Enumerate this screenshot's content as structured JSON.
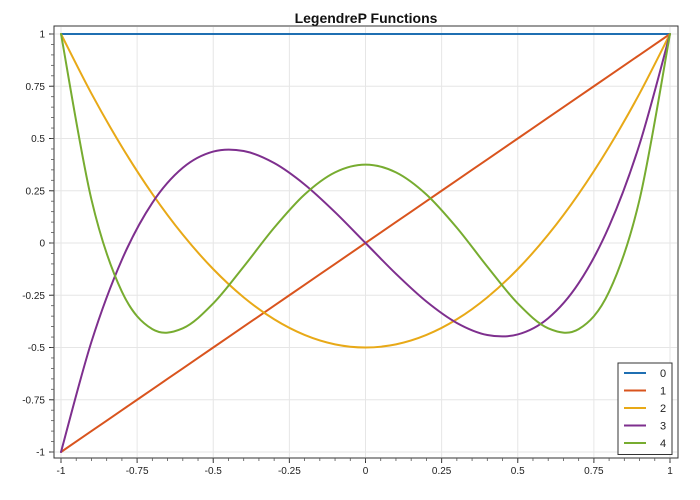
{
  "chart_data": {
    "type": "line",
    "title": "LegendreP Functions",
    "xlabel": "",
    "ylabel": "",
    "xlim": [
      -1,
      1
    ],
    "ylim": [
      -1,
      1
    ],
    "x_ticks": [
      -1,
      -0.75,
      -0.5,
      -0.25,
      0,
      0.25,
      0.5,
      0.75,
      1
    ],
    "x_tick_labels": [
      "-1",
      "-0.75",
      "-0.5",
      "-0.25",
      "0",
      "0.25",
      "0.5",
      "0.75",
      "1"
    ],
    "y_ticks": [
      -1,
      -0.75,
      -0.5,
      -0.25,
      0,
      0.25,
      0.5,
      0.75,
      1
    ],
    "y_tick_labels": [
      "-1",
      "-0.75",
      "-0.5",
      "-0.25",
      "0",
      "0.25",
      "0.5",
      "0.75",
      "1"
    ],
    "grid": true,
    "legend_position": "bottom-right",
    "x": [
      -1,
      -0.9,
      -0.8,
      -0.7,
      -0.6,
      -0.5,
      -0.4,
      -0.3,
      -0.2,
      -0.1,
      0,
      0.1,
      0.2,
      0.3,
      0.4,
      0.5,
      0.6,
      0.7,
      0.8,
      0.9,
      1
    ],
    "series": [
      {
        "name": "0",
        "color": "#1f6fb2",
        "values": [
          1,
          1,
          1,
          1,
          1,
          1,
          1,
          1,
          1,
          1,
          1,
          1,
          1,
          1,
          1,
          1,
          1,
          1,
          1,
          1,
          1
        ]
      },
      {
        "name": "1",
        "color": "#d9541e",
        "values": [
          -1,
          -0.9,
          -0.8,
          -0.7,
          -0.6,
          -0.5,
          -0.4,
          -0.3,
          -0.2,
          -0.1,
          0,
          0.1,
          0.2,
          0.3,
          0.4,
          0.5,
          0.6,
          0.7,
          0.8,
          0.9,
          1
        ]
      },
      {
        "name": "2",
        "color": "#e8a917",
        "values": [
          1,
          0.715,
          0.46,
          0.235,
          0.04,
          -0.125,
          -0.26,
          -0.365,
          -0.44,
          -0.485,
          -0.5,
          -0.485,
          -0.44,
          -0.365,
          -0.26,
          -0.125,
          0.04,
          0.235,
          0.46,
          0.715,
          1
        ]
      },
      {
        "name": "3",
        "color": "#7e2f8e",
        "values": [
          -1,
          -0.4725,
          -0.08,
          0.1925,
          0.36,
          0.4375,
          0.44,
          0.3825,
          0.28,
          0.1475,
          0,
          -0.1475,
          -0.28,
          -0.3825,
          -0.44,
          -0.4375,
          -0.36,
          -0.1925,
          0.08,
          0.4725,
          1
        ]
      },
      {
        "name": "4",
        "color": "#77ac30",
        "values": [
          1,
          0.2079,
          -0.233,
          -0.4121,
          -0.408,
          -0.2891,
          -0.113,
          0.0729,
          0.232,
          0.3379,
          0.375,
          0.3379,
          0.232,
          0.0729,
          -0.113,
          -0.2891,
          -0.408,
          -0.4121,
          -0.233,
          0.2079,
          1
        ]
      }
    ]
  }
}
